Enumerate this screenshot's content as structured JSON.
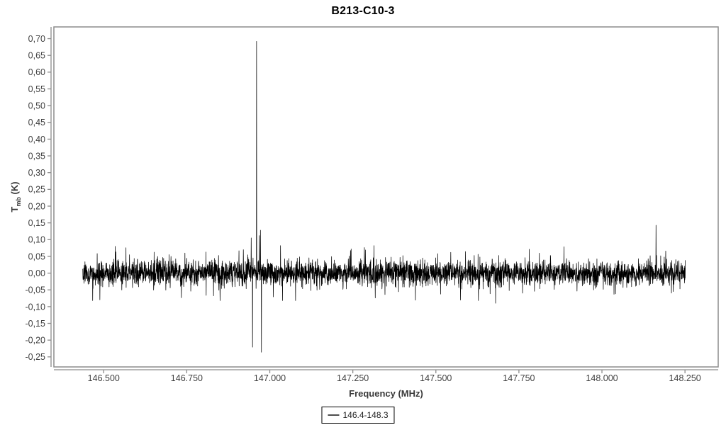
{
  "title": "B213-C10-3",
  "axes": {
    "x_label": "Frequency (MHz)",
    "y_label_main": "T",
    "y_label_sub": "mb",
    "y_label_unit": " (K)"
  },
  "legend": {
    "label": "146.4-148.3"
  },
  "colors": {
    "series": "#000000",
    "frame": "#8c8c8c",
    "axis_line": "#8c8c8c",
    "tick": "#8c8c8c",
    "tick_label": "#3f3f3f",
    "title": "#000000",
    "legend_line": "#4d4d4d"
  },
  "chart_data": {
    "type": "line",
    "title": "B213-C10-3",
    "xlabel": "Frequency (MHz)",
    "ylabel": "T_mb (K)",
    "xlim": [
      146.35,
      148.35
    ],
    "ylim": [
      -0.28,
      0.735
    ],
    "grid": false,
    "legend_position": "bottom",
    "x_ticks": {
      "values": [
        146.5,
        146.75,
        147.0,
        147.25,
        147.5,
        147.75,
        148.0,
        148.25
      ],
      "labels": [
        "146.500",
        "146.750",
        "147.000",
        "147.250",
        "147.500",
        "147.750",
        "148.000",
        "148.250"
      ]
    },
    "y_ticks": {
      "values": [
        0.7,
        0.65,
        0.6,
        0.55,
        0.5,
        0.45,
        0.4,
        0.35,
        0.3,
        0.25,
        0.2,
        0.15,
        0.1,
        0.05,
        0.0,
        -0.05,
        -0.1,
        -0.15,
        -0.2,
        -0.25
      ],
      "labels": [
        "0,70",
        "0,65",
        "0,60",
        "0,55",
        "0,50",
        "0,45",
        "0,40",
        "0,35",
        "0,30",
        "0,25",
        "0,20",
        "0,15",
        "0,10",
        "0,05",
        "0,00",
        "-0,05",
        "-0,10",
        "-0,15",
        "-0,20",
        "-0,25"
      ]
    },
    "series": [
      {
        "name": "146.4-148.3",
        "color": "#000000",
        "x_range": [
          146.437,
          148.251
        ],
        "baseline": 0.0,
        "noise_sigma": 0.018,
        "noise_tail_prob": 0.08,
        "noise_tail_gain": 1.9,
        "noise_clip": 0.082,
        "noise_points": 3600,
        "noise_seed": 1337,
        "peaks": [
          {
            "freq": 146.535,
            "amp": 0.08
          },
          {
            "freq": 146.944,
            "amp": 0.105
          },
          {
            "freq": 146.948,
            "amp": -0.221
          },
          {
            "freq": 146.96,
            "amp": 0.692
          },
          {
            "freq": 146.969,
            "amp": 0.112
          },
          {
            "freq": 146.972,
            "amp": 0.128
          },
          {
            "freq": 146.975,
            "amp": -0.236
          },
          {
            "freq": 147.245,
            "amp": 0.072
          },
          {
            "freq": 147.545,
            "amp": 0.062
          },
          {
            "freq": 147.68,
            "amp": -0.09
          },
          {
            "freq": 148.163,
            "amp": 0.143
          },
          {
            "freq": 148.192,
            "amp": 0.066
          }
        ]
      }
    ]
  }
}
